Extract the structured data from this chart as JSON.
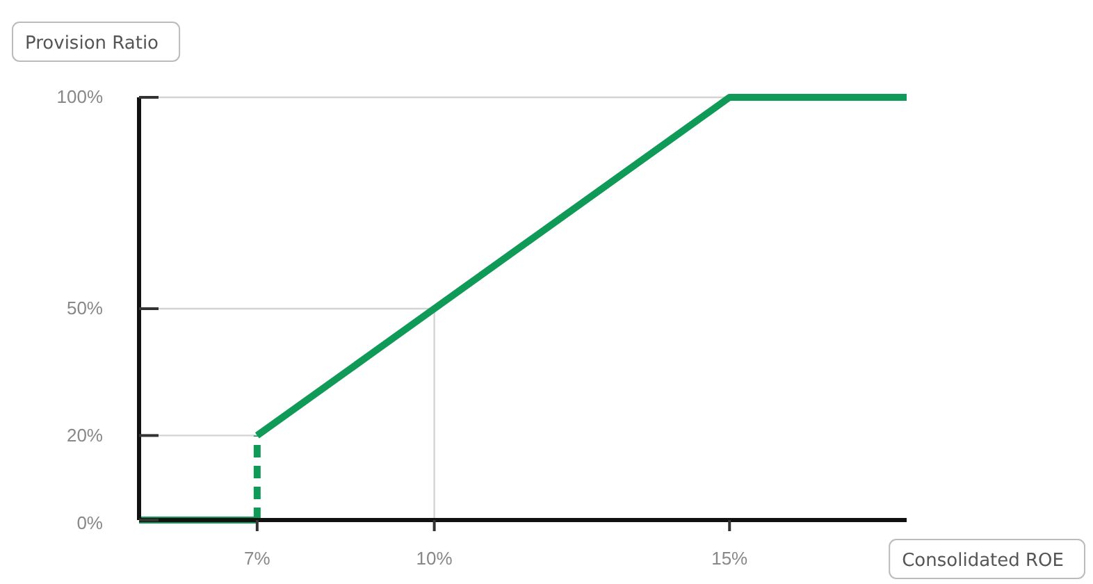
{
  "chart_data": {
    "type": "line",
    "xlabel": "Consolidated ROE",
    "ylabel": "Provision Ratio",
    "xlim": [
      5,
      18
    ],
    "xticks": [
      {
        "value": 7,
        "label": "7%"
      },
      {
        "value": 10,
        "label": "10%"
      },
      {
        "value": 15,
        "label": "15%"
      }
    ],
    "ylim": [
      0,
      100
    ],
    "yticks": [
      {
        "value": 0,
        "label": "0%"
      },
      {
        "value": 20,
        "label": "20%"
      },
      {
        "value": 50,
        "label": "50%"
      },
      {
        "value": 100,
        "label": "100%"
      }
    ],
    "series": [
      {
        "color": "#0f9a57",
        "x": [
          5,
          7
        ],
        "values": [
          0,
          0
        ],
        "line_style": "solid"
      },
      {
        "color": "#0f9a57",
        "x": [
          7,
          7
        ],
        "values": [
          0,
          20
        ],
        "line_style": "dashed"
      },
      {
        "color": "#0f9a57",
        "x": [
          7,
          15,
          18
        ],
        "values": [
          20,
          100,
          100
        ],
        "line_style": "solid"
      }
    ],
    "ref_lines": [
      {
        "axis": "y",
        "value": 100,
        "color": "#d4d4d4"
      },
      {
        "axis": "y",
        "value": 50,
        "color": "#d4d4d4"
      },
      {
        "axis": "y",
        "value": 20,
        "color": "#d4d4d4"
      },
      {
        "axis": "x",
        "value": 10,
        "color": "#d4d4d4"
      }
    ],
    "grid": false,
    "marker": "none"
  }
}
